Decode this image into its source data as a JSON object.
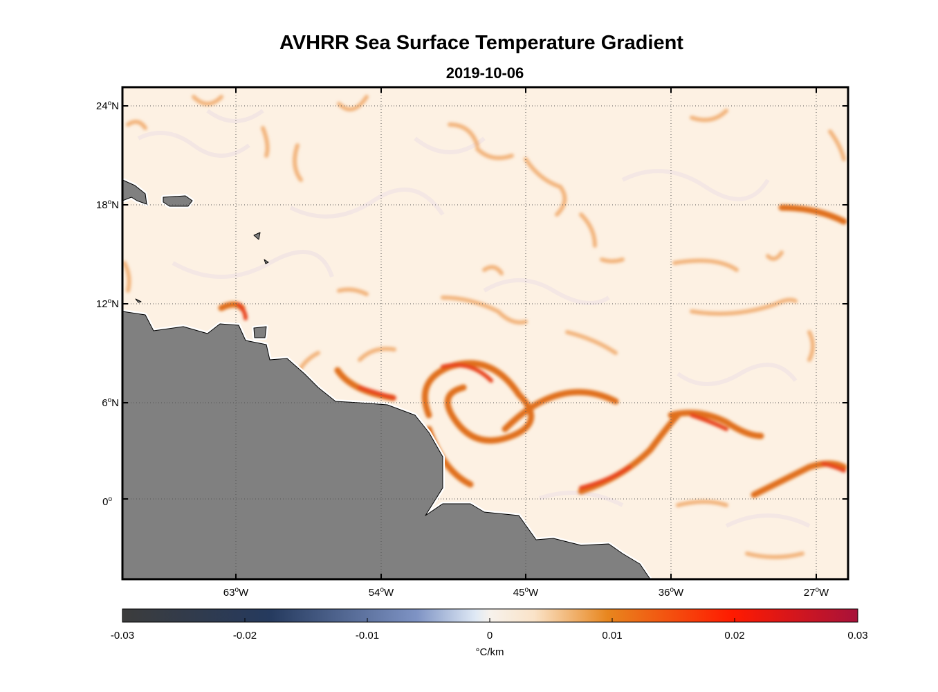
{
  "title": "AVHRR Sea Surface Temperature Gradient",
  "subtitle": "2019-10-06",
  "map": {
    "lon_labels": [
      {
        "deg": "63",
        "hemi": "W",
        "lon": -63
      },
      {
        "deg": "54",
        "hemi": "W",
        "lon": -54
      },
      {
        "deg": "45",
        "hemi": "W",
        "lon": -45
      },
      {
        "deg": "36",
        "hemi": "W",
        "lon": -36
      },
      {
        "deg": "27",
        "hemi": "W",
        "lon": -27
      }
    ],
    "lat_labels": [
      {
        "deg": "24",
        "hemi": "N",
        "lat": 24
      },
      {
        "deg": "18",
        "hemi": "N",
        "lat": 18
      },
      {
        "deg": "12",
        "hemi": "N",
        "lat": 12
      },
      {
        "deg": "6",
        "hemi": "N",
        "lat": 6
      },
      {
        "deg": "0",
        "hemi": "",
        "lat": 0
      }
    ],
    "land_color": "#808080",
    "ocean_color": "#fdf1e3"
  },
  "colorbar": {
    "ticks": [
      "-0.03",
      "-0.02",
      "-0.01",
      "0",
      "0.01",
      "0.02",
      "0.03"
    ],
    "unit_label": "°C/km",
    "colors": [
      "#3c3c3c",
      "#253a5e",
      "#5b73a8",
      "#f7f2ec",
      "#fae6cc",
      "#e8861e",
      "#ff1a00",
      "#a8123a"
    ]
  }
}
